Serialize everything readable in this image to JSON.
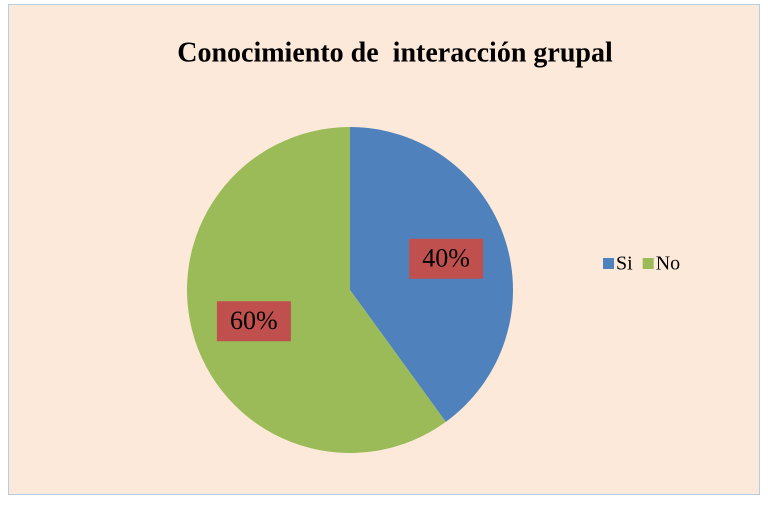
{
  "chart_data": {
    "type": "pie",
    "title": "Conocimiento de  interacción grupal",
    "categories": [
      "Si",
      "No"
    ],
    "values": [
      40,
      60
    ],
    "value_labels": [
      "40%",
      "60%"
    ],
    "colors": [
      "#4f81bd",
      "#9bbb59"
    ],
    "legend": "right"
  }
}
